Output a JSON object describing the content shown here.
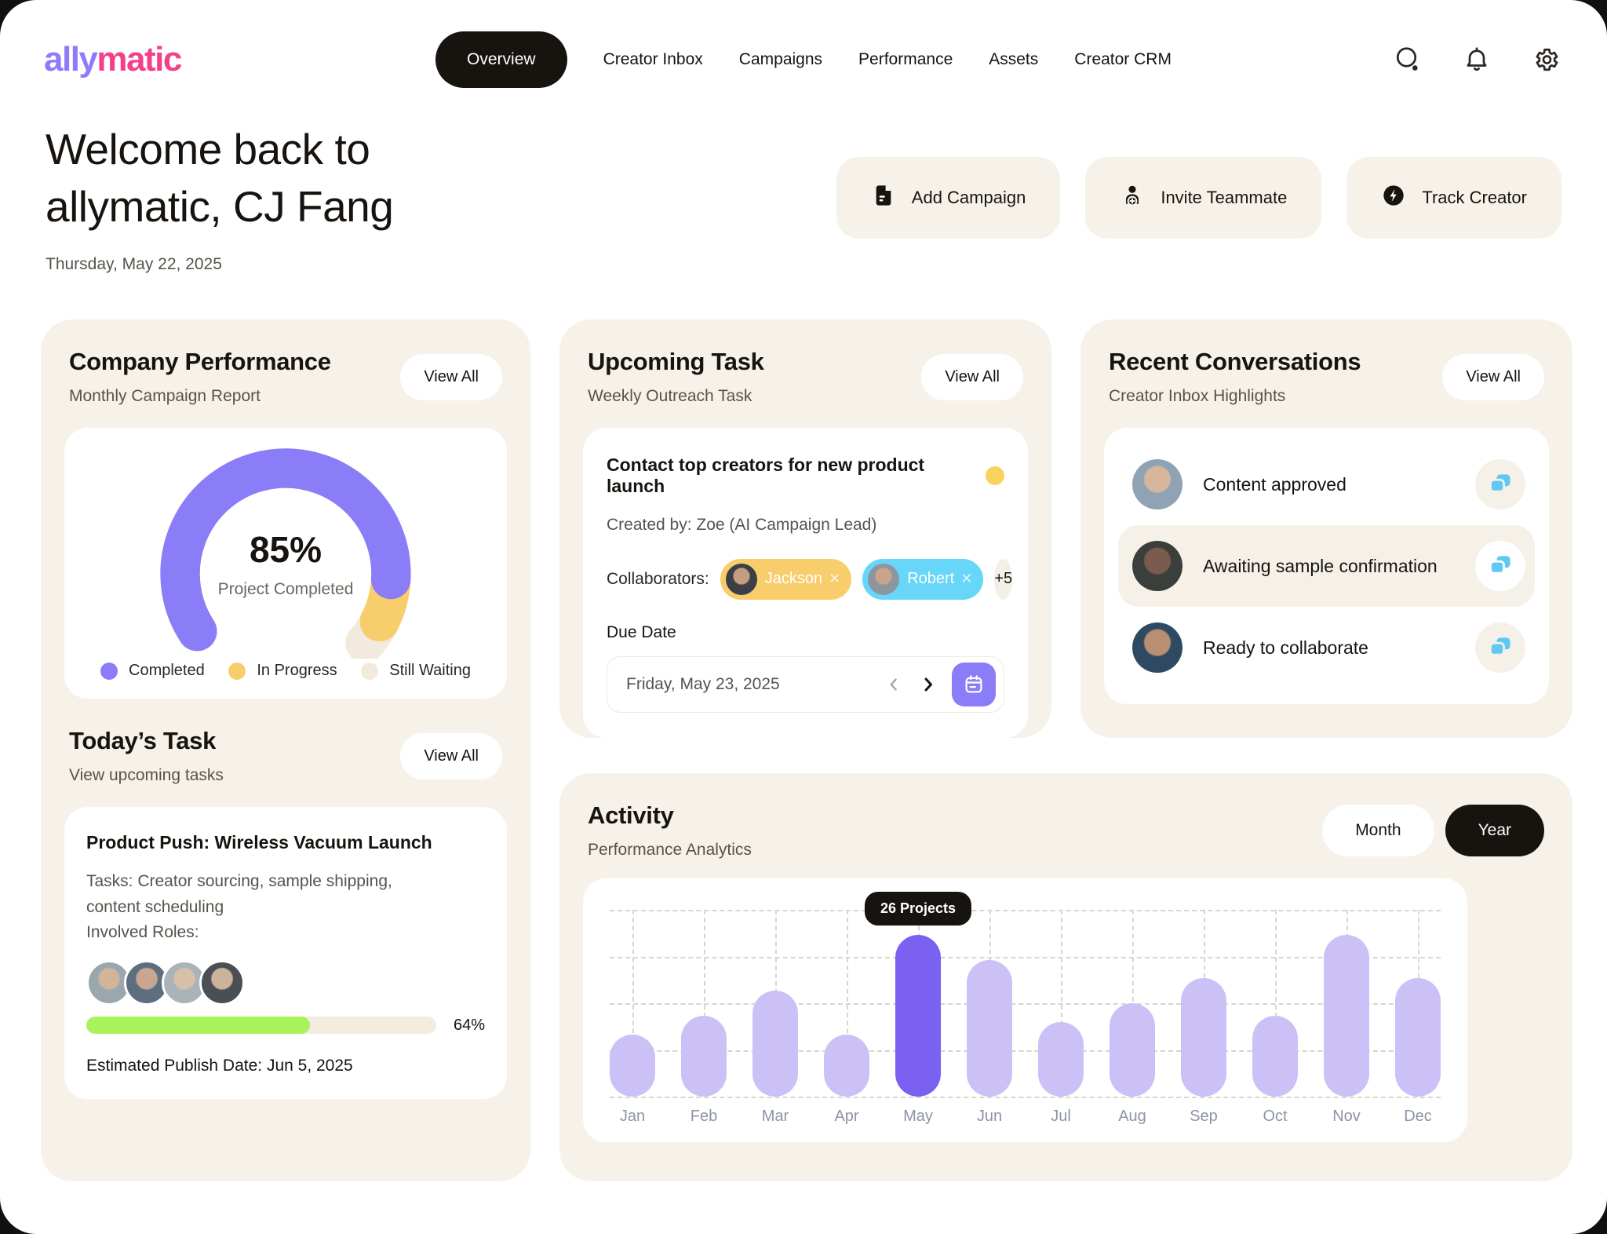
{
  "colors": {
    "accent_purple": "#8b7cf7",
    "bar_highlight": "#7b61f1",
    "bar_light": "#ccc1f6",
    "yellow": "#f8cd6b",
    "cyan": "#67d6f8",
    "green_progress": "#a8f25c",
    "card_cream": "#f7f2e9",
    "beige": "#f2ebdd",
    "ink": "#17130f",
    "logo_purple": "#8d7bfa",
    "logo_pink": "#f43f8a"
  },
  "nav": {
    "logo_part1": "ally",
    "logo_part2": "matic",
    "items": [
      {
        "label": "Overview",
        "active": true
      },
      {
        "label": "Creator Inbox"
      },
      {
        "label": "Campaigns"
      },
      {
        "label": "Performance"
      },
      {
        "label": "Assets"
      },
      {
        "label": "Creator CRM"
      }
    ],
    "icons": [
      "search",
      "bell",
      "gear"
    ]
  },
  "welcome": {
    "line1": "Welcome back to",
    "line2": "allymatic, CJ Fang",
    "date": "Thursday, May 22, 2025"
  },
  "actions": {
    "add_campaign": "Add Campaign",
    "invite_teammate": "Invite Teammate",
    "track_creator": "Track Creator"
  },
  "company_performance": {
    "title": "Company Performance",
    "subtitle": "Monthly Campaign Report",
    "view_all": "View All",
    "gauge_percent": "85%",
    "gauge_label": "Project Completed",
    "legend": [
      {
        "label": "Completed",
        "color": "#8b7cf7"
      },
      {
        "label": "In Progress",
        "color": "#f8cd6b"
      },
      {
        "label": "Still Waiting",
        "color": "#f2ebdd"
      }
    ]
  },
  "todays_task": {
    "title": "Today’s Task",
    "subtitle": "View upcoming tasks",
    "view_all": "View All",
    "task_title": "Product Push: Wireless Vacuum Launch",
    "tasks_line1": "Tasks: Creator sourcing, sample shipping,",
    "tasks_line2": "content scheduling",
    "roles_label": "Involved Roles:",
    "progress_value": 64,
    "progress_label": "64%",
    "publish_date": "Estimated Publish Date: Jun 5, 2025"
  },
  "upcoming_task": {
    "title": "Upcoming Task",
    "subtitle": "Weekly Outreach Task",
    "view_all": "View All",
    "task_title": "Contact top creators for new product launch",
    "created_by": "Created by: Zoe (AI Campaign Lead)",
    "collaborators_label": "Collaborators:",
    "chips": [
      {
        "name": "Jackson",
        "color": "#f8cd6b"
      },
      {
        "name": "Robert",
        "color": "#67d6f8"
      }
    ],
    "more_count": "+5",
    "due_label": "Due Date",
    "due_value": "Friday, May 23, 2025"
  },
  "recent_conversations": {
    "title": "Recent Conversations",
    "subtitle": "Creator Inbox Highlights",
    "view_all": "View All",
    "rows": [
      {
        "label": "Content approved",
        "highlighted": false
      },
      {
        "label": "Awaiting sample confirmation",
        "highlighted": true
      },
      {
        "label": "Ready to collaborate",
        "highlighted": false
      }
    ]
  },
  "activity": {
    "title": "Activity",
    "subtitle": "Performance Analytics",
    "toggle_month": "Month",
    "toggle_year": "Year",
    "active_toggle": "Year",
    "chart_data": {
      "type": "bar",
      "title": "Activity — Performance Analytics",
      "categories": [
        "Jan",
        "Feb",
        "Mar",
        "Apr",
        "May",
        "Jun",
        "Jul",
        "Aug",
        "Sep",
        "Oct",
        "Nov",
        "Dec"
      ],
      "values": [
        10,
        13,
        17,
        10,
        26,
        22,
        12,
        15,
        19,
        13,
        26,
        19
      ],
      "ylim": [
        0,
        30
      ],
      "xlabel": "",
      "ylabel": "",
      "grid": "dashed",
      "legend_position": "none",
      "highlight_index": 4,
      "tooltip": "26 Projects",
      "bar_color": "#ccc1f6",
      "highlight_color": "#7b61f1"
    }
  }
}
